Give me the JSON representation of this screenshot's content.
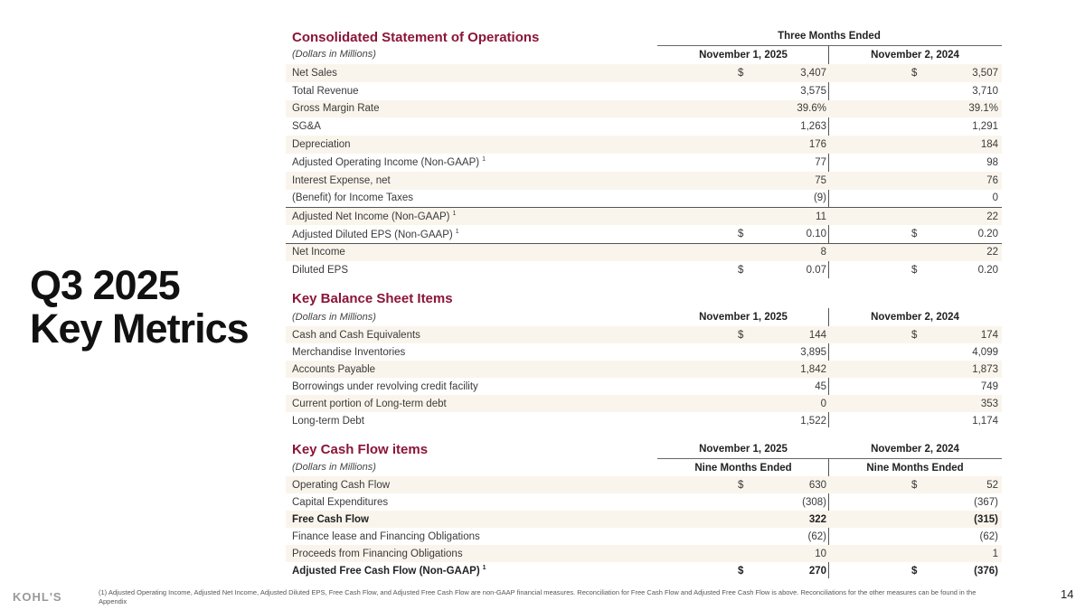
{
  "slide_title_line1": "Q3 2025",
  "slide_title_line2": "Key Metrics",
  "ops": {
    "title": "Consolidated Statement of Operations",
    "period": "Three Months Ended",
    "units": "(Dollars in Millions)",
    "col1": "November 1, 2025",
    "col2": "November 2, 2024",
    "rows": [
      {
        "label": "Net Sales",
        "d1": "$",
        "v1": "3,407",
        "d2": "$",
        "v2": "3,507"
      },
      {
        "label": "Total Revenue",
        "v1": "3,575",
        "v2": "3,710"
      },
      {
        "label": "Gross Margin Rate",
        "v1": "39.6%",
        "v2": "39.1%"
      },
      {
        "label": "SG&A",
        "v1": "1,263",
        "v2": "1,291"
      },
      {
        "label": "Depreciation",
        "v1": "176",
        "v2": "184"
      },
      {
        "label": "Adjusted Operating Income (Non-GAAP)",
        "sup": "1",
        "v1": "77",
        "v2": "98"
      },
      {
        "label": "Interest Expense, net",
        "v1": "75",
        "v2": "76"
      },
      {
        "label": "(Benefit) for Income Taxes",
        "v1": "(9)",
        "v2": "0"
      },
      {
        "label": "Adjusted Net Income (Non-GAAP)",
        "sup": "1",
        "v1": "11",
        "v2": "22",
        "bt": true
      },
      {
        "label": "Adjusted Diluted EPS (Non-GAAP)",
        "sup": "1",
        "d1": "$",
        "v1": "0.10",
        "d2": "$",
        "v2": "0.20"
      },
      {
        "label": "Net Income",
        "v1": "8",
        "v2": "22",
        "bt": true
      },
      {
        "label": "Diluted EPS",
        "d1": "$",
        "v1": "0.07",
        "d2": "$",
        "v2": "0.20"
      }
    ]
  },
  "bal": {
    "title": "Key Balance Sheet Items",
    "units": "(Dollars in Millions)",
    "col1": "November 1, 2025",
    "col2": "November 2, 2024",
    "rows": [
      {
        "label": "Cash and Cash Equivalents",
        "d1": "$",
        "v1": "144",
        "d2": "$",
        "v2": "174"
      },
      {
        "label": "Merchandise Inventories",
        "v1": "3,895",
        "v2": "4,099"
      },
      {
        "label": "Accounts Payable",
        "v1": "1,842",
        "v2": "1,873"
      },
      {
        "label": "Borrowings under revolving credit facility",
        "v1": "45",
        "v2": "749"
      },
      {
        "label": "Current portion of Long-term debt",
        "v1": "0",
        "v2": "353"
      },
      {
        "label": "Long-term Debt",
        "v1": "1,522",
        "v2": "1,174"
      }
    ]
  },
  "cash": {
    "title": "Key Cash Flow items",
    "units": "(Dollars in Millions)",
    "col1": "November 1, 2025",
    "col2": "November 2, 2024",
    "sub1": "Nine Months Ended",
    "sub2": "Nine Months Ended",
    "rows": [
      {
        "label": "Operating Cash Flow",
        "d1": "$",
        "v1": "630",
        "d2": "$",
        "v2": "52"
      },
      {
        "label": "Capital Expenditures",
        "v1": "(308)",
        "v2": "(367)"
      },
      {
        "label": "Free Cash Flow",
        "v1": "322",
        "v2": "(315)",
        "b": true
      },
      {
        "label": "Finance lease and Financing Obligations",
        "v1": "(62)",
        "v2": "(62)"
      },
      {
        "label": "Proceeds from Financing Obligations",
        "v1": "10",
        "v2": "1"
      },
      {
        "label": "Adjusted Free Cash Flow (Non-GAAP)",
        "sup": "1",
        "d1": "$",
        "v1": "270",
        "d2": "$",
        "v2": "(376)",
        "b": true
      }
    ]
  },
  "footnote": "(1) Adjusted Operating Income, Adjusted Net Income, Adjusted Diluted EPS, Free Cash Flow, and Adjusted Free Cash Flow are non-GAAP financial measures. Reconciliation for Free Cash Flow and Adjusted Free Cash Flow is above. Reconciliations for the other measures can be found in the Appendix",
  "logo": "KOHL'S",
  "page_number": "14"
}
